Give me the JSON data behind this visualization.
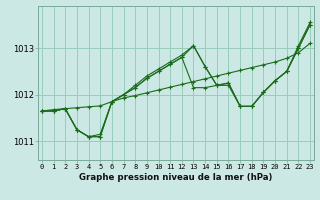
{
  "title": "Graphe pression niveau de la mer (hPa)",
  "background_color": "#cce8e4",
  "grid_color": "#99ccbb",
  "line_color": "#1a6b1a",
  "x_labels": [
    "0",
    "1",
    "2",
    "3",
    "4",
    "5",
    "6",
    "7",
    "8",
    "9",
    "10",
    "11",
    "12",
    "13",
    "14",
    "15",
    "16",
    "17",
    "18",
    "19",
    "20",
    "21",
    "22",
    "23"
  ],
  "ylim": [
    1010.6,
    1013.9
  ],
  "yticks": [
    1011,
    1012,
    1013
  ],
  "xlim": [
    -0.3,
    23.3
  ],
  "series": [
    [
      1011.65,
      1011.65,
      1011.7,
      1011.25,
      1011.1,
      1011.1,
      1011.85,
      1012.0,
      1012.15,
      1012.35,
      1012.5,
      1012.65,
      1012.8,
      1012.15,
      1012.15,
      1012.2,
      1012.2,
      1011.75,
      1011.75,
      1012.05,
      1012.3,
      1012.5,
      1013.0,
      1013.5
    ],
    [
      1011.65,
      1011.65,
      1011.7,
      1011.25,
      1011.1,
      1011.1,
      1011.85,
      1012.0,
      1012.15,
      1012.35,
      1012.5,
      1012.65,
      1012.8,
      1013.05,
      1012.6,
      1012.2,
      1012.25,
      1011.75,
      1011.75,
      1012.05,
      1012.3,
      1012.5,
      1013.0,
      1013.5
    ],
    [
      1011.65,
      1011.65,
      1011.7,
      1011.25,
      1011.1,
      1011.15,
      1011.85,
      1012.0,
      1012.2,
      1012.4,
      1012.55,
      1012.7,
      1012.85,
      1013.05,
      1012.6,
      1012.2,
      1012.25,
      1011.75,
      1011.75,
      1012.05,
      1012.3,
      1012.5,
      1013.05,
      1013.55
    ],
    [
      1011.65,
      1011.68,
      1011.7,
      1011.72,
      1011.74,
      1011.76,
      1011.85,
      1011.93,
      1011.98,
      1012.04,
      1012.1,
      1012.16,
      1012.22,
      1012.28,
      1012.34,
      1012.4,
      1012.46,
      1012.52,
      1012.58,
      1012.64,
      1012.7,
      1012.78,
      1012.9,
      1013.1
    ]
  ]
}
